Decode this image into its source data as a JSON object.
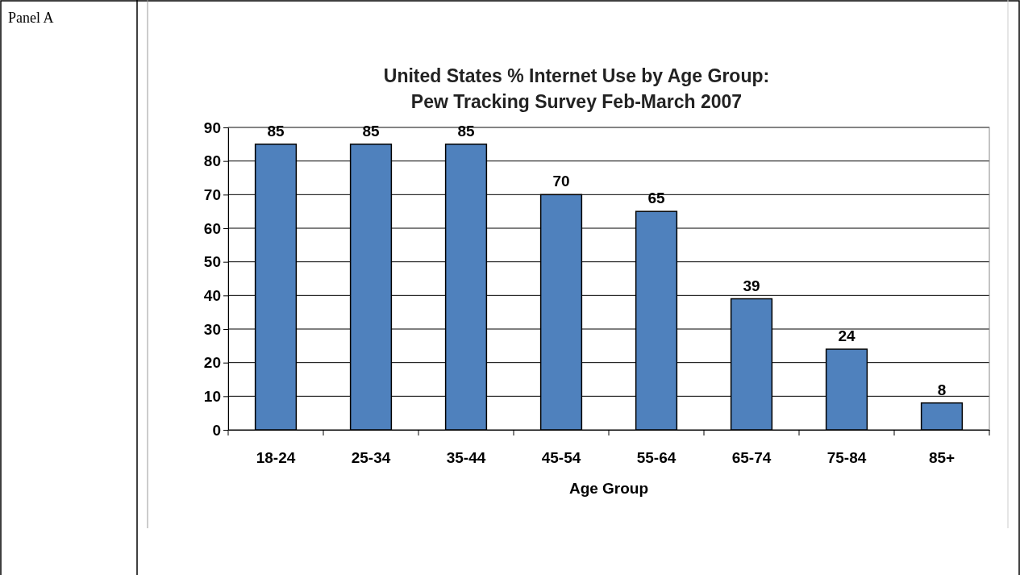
{
  "chart_data": {
    "type": "bar",
    "title": "United States % Internet Use by Age Group:\nPew Tracking Survey Feb-March 2007",
    "xlabel": "Age Group",
    "categories": [
      "18-24",
      "25-34",
      "35-44",
      "45-54",
      "55-64",
      "65-74",
      "75-84",
      "85+"
    ],
    "values": [
      85,
      85,
      85,
      70,
      65,
      39,
      24,
      8
    ],
    "color": "#4f81bd",
    "ylim": [
      0,
      90
    ],
    "yticks": [
      0,
      10,
      20,
      30,
      40,
      50,
      60,
      70,
      80,
      90
    ],
    "grid": "y",
    "data_labels": true,
    "annotations": [
      "Panel A"
    ]
  }
}
